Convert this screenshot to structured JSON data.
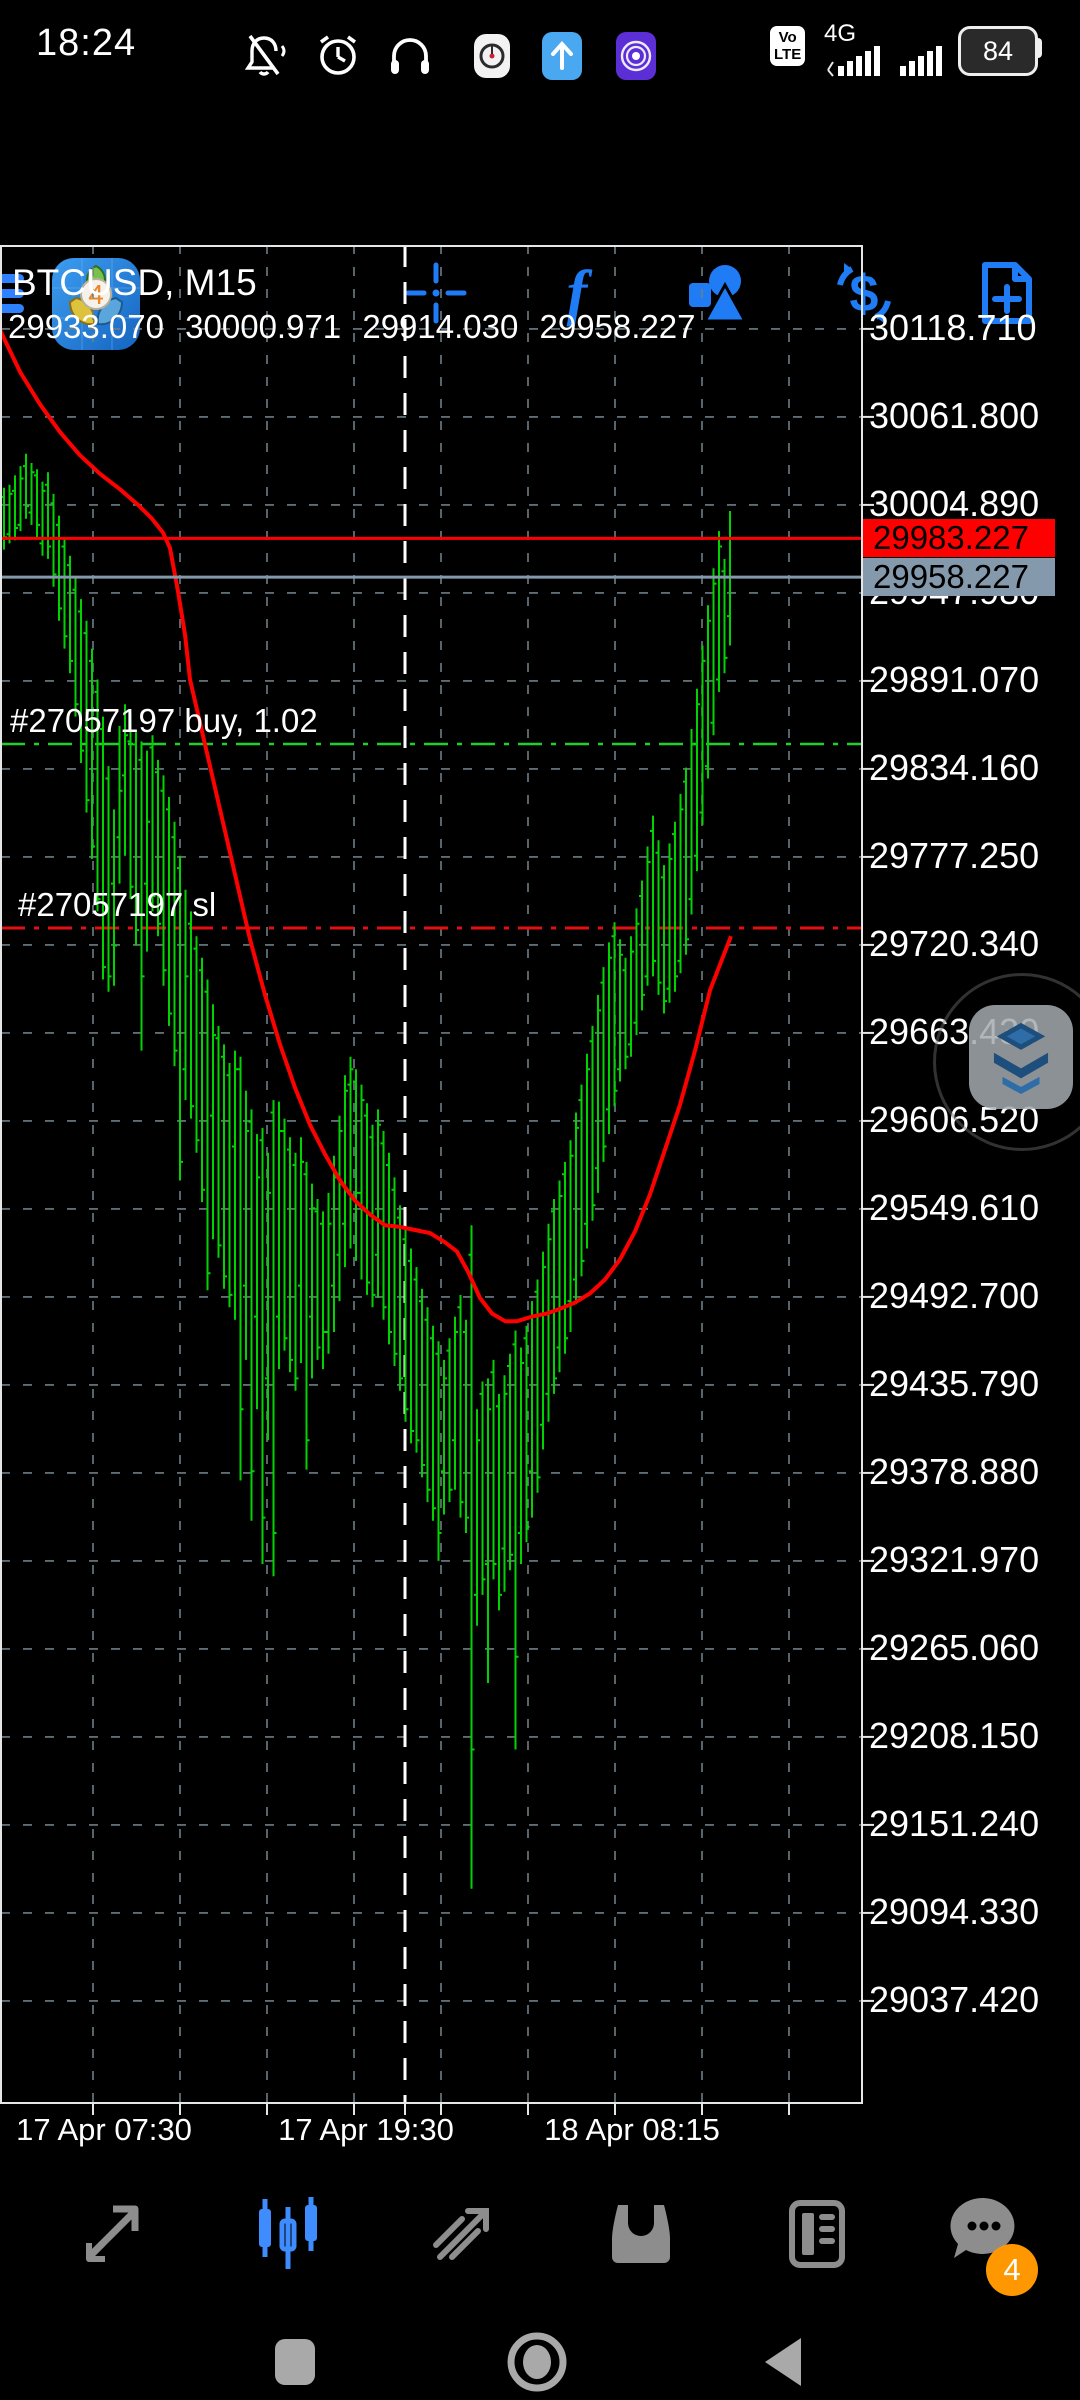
{
  "colors": {
    "accent_blue": "#1f7cf5",
    "bar_green": "#00d300",
    "ma_red": "#ff0000",
    "grid": "#6e7e88",
    "separator_white": "#ffffff",
    "ask_bg": "#ff0000",
    "bid_bg": "#8499ab",
    "buy_line": "#1fcf2f",
    "sl_line": "#e01010",
    "icon_gray": "#8d8d8d",
    "active_blue": "#3f8cff",
    "badge_orange": "#ff9800",
    "border": "#e6e6e6"
  },
  "status_bar": {
    "time": "18:24",
    "left_icons": [
      "muted-bell-icon",
      "alarm-clock-icon",
      "headphones-icon",
      "recorder-icon",
      "arrow-up-app-icon",
      "vpn-app-icon"
    ],
    "volte_line1": "Vo",
    "volte_line2": "LTE",
    "network_type": "4G",
    "battery_level": "84"
  },
  "toolbar": {
    "app_badge": "4",
    "function_glyph": "f",
    "currency_glyph": "$"
  },
  "chart": {
    "symbol": "BTCUSD, M15",
    "ohlc": {
      "open": "29933.070",
      "high": "30000.971",
      "low": "29914.030",
      "close": "29958.227"
    },
    "ask_label": "29983.227",
    "bid_label": "29958.227",
    "position_buy_label": "#27057197 buy, 1.02",
    "position_sl_label": "#27057197 sl",
    "y_axis_labels": [
      "30118.710",
      "30061.800",
      "30004.890",
      "29947.980",
      "29891.070",
      "29834.160",
      "29777.250",
      "29720.340",
      "29663.430",
      "29606.520",
      "29549.610",
      "29492.700",
      "29435.790",
      "29378.880",
      "29321.970",
      "29265.060",
      "29208.150",
      "29151.240",
      "29094.330",
      "29037.420"
    ],
    "x_axis_labels": [
      {
        "text": "17 Apr 07:30",
        "x": 104
      },
      {
        "text": "17 Apr 19:30",
        "x": 366
      },
      {
        "text": "18 Apr 08:15",
        "x": 632
      }
    ]
  },
  "chart_data": {
    "type": "ohlc-bar",
    "symbol": "BTCUSD",
    "timeframe": "M15",
    "ylim": [
      28971.4,
      30173.0
    ],
    "price_gridlines": [
      30118.71,
      30061.8,
      30004.89,
      29947.98,
      29891.07,
      29834.16,
      29777.25,
      29720.34,
      29663.43,
      29606.52,
      29549.61,
      29492.7,
      29435.79,
      29378.88,
      29321.97,
      29265.06,
      29208.15,
      29151.24,
      29094.33,
      29037.42
    ],
    "time_gridlines_x": [
      93,
      180,
      267,
      354,
      441,
      528,
      615,
      702,
      789
    ],
    "day_separator_x": 405,
    "lines": {
      "ask": 29983.227,
      "bid": 29958.227,
      "buy": 29850.3,
      "sl": 29731.3
    },
    "bars": {
      "x0": 4,
      "pitch": 5.5,
      "ohlc": [
        [
          30010,
          30016,
          29976,
          29984
        ],
        [
          29986,
          30018,
          29980,
          30012
        ],
        [
          30014,
          30024,
          29982,
          29990
        ],
        [
          29992,
          30030,
          29988,
          30022
        ],
        [
          30030,
          30038,
          29996,
          30004
        ],
        [
          30000,
          30032,
          29992,
          30026
        ],
        [
          30024,
          30028,
          29984,
          29992
        ],
        [
          29980,
          30020,
          29972,
          30014
        ],
        [
          30018,
          30026,
          29970,
          29978
        ],
        [
          30006,
          30012,
          29952,
          29960
        ],
        [
          29992,
          29998,
          29930,
          29938
        ],
        [
          29978,
          29984,
          29912,
          29920
        ],
        [
          29966,
          29972,
          29896,
          29904
        ],
        [
          29950,
          29958,
          29868,
          29876
        ],
        [
          29936,
          29944,
          29838,
          29846
        ],
        [
          29922,
          29930,
          29806,
          29814
        ],
        [
          29904,
          29912,
          29776,
          29784
        ],
        [
          29884,
          29892,
          29742,
          29750
        ],
        [
          29860,
          29868,
          29698,
          29706
        ],
        [
          29828,
          29836,
          29690,
          29700
        ],
        [
          29760,
          29808,
          29694,
          29720
        ],
        [
          29790,
          29862,
          29760,
          29820
        ],
        [
          29830,
          29876,
          29778,
          29856
        ],
        [
          29852,
          29870,
          29750,
          29758
        ],
        [
          29850,
          29858,
          29720,
          29730
        ],
        [
          29840,
          29852,
          29652,
          29700
        ],
        [
          29760,
          29846,
          29716,
          29800
        ],
        [
          29848,
          29856,
          29742,
          29752
        ],
        [
          29832,
          29840,
          29726,
          29734
        ],
        [
          29820,
          29830,
          29694,
          29704
        ],
        [
          29808,
          29816,
          29668,
          29676
        ],
        [
          29790,
          29800,
          29642,
          29652
        ],
        [
          29770,
          29778,
          29568,
          29580
        ],
        [
          29640,
          29756,
          29620,
          29700
        ],
        [
          29734,
          29742,
          29608,
          29616
        ],
        [
          29718,
          29726,
          29586,
          29594
        ],
        [
          29704,
          29712,
          29554,
          29562
        ],
        [
          29690,
          29698,
          29497,
          29508
        ],
        [
          29610,
          29682,
          29530,
          29662
        ],
        [
          29660,
          29668,
          29518,
          29526
        ],
        [
          29648,
          29656,
          29498,
          29506
        ],
        [
          29636,
          29644,
          29486,
          29494
        ],
        [
          29590,
          29652,
          29478,
          29640
        ],
        [
          29640,
          29648,
          29374,
          29420
        ],
        [
          29500,
          29626,
          29452,
          29600
        ],
        [
          29606,
          29614,
          29348,
          29380
        ],
        [
          29480,
          29598,
          29420,
          29570
        ],
        [
          29594,
          29602,
          29320,
          29350
        ],
        [
          29440,
          29586,
          29400,
          29560
        ],
        [
          29612,
          29620,
          29312,
          29340
        ],
        [
          29480,
          29619,
          29446,
          29600
        ],
        [
          29600,
          29608,
          29458,
          29466
        ],
        [
          29588,
          29596,
          29444,
          29452
        ],
        [
          29578,
          29586,
          29432,
          29440
        ],
        [
          29500,
          29596,
          29450,
          29580
        ],
        [
          29572,
          29580,
          29381,
          29400
        ],
        [
          29480,
          29566,
          29440,
          29550
        ],
        [
          29548,
          29556,
          29452,
          29460
        ],
        [
          29540,
          29548,
          29446,
          29470
        ],
        [
          29470,
          29560,
          29456,
          29540
        ],
        [
          29500,
          29584,
          29470,
          29570
        ],
        [
          29520,
          29610,
          29490,
          29600
        ],
        [
          29540,
          29636,
          29512,
          29626
        ],
        [
          29630,
          29648,
          29524,
          29640
        ],
        [
          29632,
          29640,
          29516,
          29560
        ],
        [
          29560,
          29630,
          29504,
          29620
        ],
        [
          29610,
          29618,
          29494,
          29502
        ],
        [
          29596,
          29604,
          29486,
          29494
        ],
        [
          29520,
          29614,
          29492,
          29604
        ],
        [
          29592,
          29600,
          29478,
          29486
        ],
        [
          29578,
          29586,
          29462,
          29470
        ],
        [
          29562,
          29570,
          29448,
          29456
        ],
        [
          29544,
          29552,
          29432,
          29440
        ],
        [
          29530,
          29538,
          29412,
          29420
        ],
        [
          29516,
          29524,
          29398,
          29406
        ],
        [
          29504,
          29512,
          29392,
          29400
        ],
        [
          29490,
          29498,
          29376,
          29384
        ],
        [
          29478,
          29486,
          29360,
          29368
        ],
        [
          29466,
          29474,
          29348,
          29356
        ],
        [
          29456,
          29464,
          29322,
          29340
        ],
        [
          29380,
          29452,
          29352,
          29440
        ],
        [
          29458,
          29466,
          29360,
          29368
        ],
        [
          29400,
          29480,
          29368,
          29470
        ],
        [
          29486,
          29494,
          29350,
          29360
        ],
        [
          29470,
          29478,
          29340,
          29350
        ],
        [
          29520,
          29539,
          29110,
          29200
        ],
        [
          29300,
          29420,
          29280,
          29400
        ],
        [
          29430,
          29438,
          29300,
          29310
        ],
        [
          29320,
          29440,
          29243,
          29420
        ],
        [
          29444,
          29452,
          29310,
          29320
        ],
        [
          29422,
          29430,
          29290,
          29300
        ],
        [
          29330,
          29442,
          29302,
          29430
        ],
        [
          29448,
          29456,
          29316,
          29326
        ],
        [
          29462,
          29471,
          29200,
          29260
        ],
        [
          29340,
          29460,
          29320,
          29450
        ],
        [
          29466,
          29474,
          29334,
          29344
        ],
        [
          29380,
          29490,
          29350,
          29480
        ],
        [
          29496,
          29504,
          29366,
          29376
        ],
        [
          29410,
          29522,
          29394,
          29512
        ],
        [
          29430,
          29540,
          29412,
          29530
        ],
        [
          29548,
          29556,
          29430,
          29440
        ],
        [
          29460,
          29568,
          29444,
          29558
        ],
        [
          29572,
          29580,
          29456,
          29466
        ],
        [
          29490,
          29594,
          29470,
          29584
        ],
        [
          29504,
          29612,
          29488,
          29602
        ],
        [
          29620,
          29630,
          29506,
          29516
        ],
        [
          29540,
          29650,
          29524,
          29640
        ],
        [
          29658,
          29668,
          29542,
          29552
        ],
        [
          29576,
          29688,
          29560,
          29678
        ],
        [
          29696,
          29706,
          29580,
          29590
        ],
        [
          29614,
          29722,
          29598,
          29712
        ],
        [
          29726,
          29735,
          29616,
          29626
        ],
        [
          29640,
          29724,
          29632,
          29714
        ],
        [
          29704,
          29712,
          29640,
          29648
        ],
        [
          29656,
          29726,
          29648,
          29716
        ],
        [
          29670,
          29744,
          29662,
          29734
        ],
        [
          29752,
          29762,
          29678,
          29688
        ],
        [
          29700,
          29784,
          29694,
          29774
        ],
        [
          29794,
          29804,
          29700,
          29710
        ],
        [
          29780,
          29788,
          29688,
          29696
        ],
        [
          29764,
          29772,
          29676,
          29684
        ],
        [
          29692,
          29786,
          29683,
          29776
        ],
        [
          29792,
          29800,
          29690,
          29700
        ],
        [
          29710,
          29818,
          29702,
          29808
        ],
        [
          29826,
          29835,
          29714,
          29724
        ],
        [
          29750,
          29860,
          29740,
          29850
        ],
        [
          29778,
          29886,
          29768,
          29876
        ],
        [
          29806,
          29914,
          29798,
          29904
        ],
        [
          29836,
          29940,
          29828,
          29930
        ],
        [
          29864,
          29964,
          29856,
          29954
        ],
        [
          29892,
          29988,
          29884,
          29978
        ],
        [
          29962,
          29970,
          29896,
          29906
        ],
        [
          29933,
          30001,
          29914,
          29958
        ]
      ]
    },
    "ma": {
      "color": "#ff0000",
      "points": [
        [
          0,
          30118
        ],
        [
          20,
          30091
        ],
        [
          40,
          30070
        ],
        [
          60,
          30052
        ],
        [
          80,
          30037
        ],
        [
          100,
          30025
        ],
        [
          120,
          30015
        ],
        [
          138,
          30005
        ],
        [
          152,
          29996
        ],
        [
          163,
          29987
        ],
        [
          170,
          29977
        ],
        [
          178,
          29949
        ],
        [
          185,
          29921
        ],
        [
          190,
          29892
        ],
        [
          205,
          29850
        ],
        [
          220,
          29808
        ],
        [
          235,
          29766
        ],
        [
          250,
          29724
        ],
        [
          265,
          29688
        ],
        [
          280,
          29656
        ],
        [
          295,
          29628
        ],
        [
          310,
          29604
        ],
        [
          325,
          29585
        ],
        [
          340,
          29568
        ],
        [
          355,
          29555
        ],
        [
          370,
          29546
        ],
        [
          385,
          29539
        ],
        [
          400,
          29538
        ],
        [
          415,
          29536
        ],
        [
          430,
          29534
        ],
        [
          445,
          29528
        ],
        [
          457,
          29522
        ],
        [
          468,
          29509
        ],
        [
          480,
          29492
        ],
        [
          492,
          29482
        ],
        [
          505,
          29477
        ],
        [
          517,
          29477
        ],
        [
          532,
          29480
        ],
        [
          547,
          29482
        ],
        [
          560,
          29485
        ],
        [
          575,
          29489
        ],
        [
          590,
          29495
        ],
        [
          605,
          29504
        ],
        [
          620,
          29517
        ],
        [
          635,
          29535
        ],
        [
          650,
          29559
        ],
        [
          665,
          29588
        ],
        [
          680,
          29617
        ],
        [
          695,
          29652
        ],
        [
          710,
          29691
        ],
        [
          722,
          29711
        ],
        [
          731,
          29726
        ]
      ]
    }
  },
  "bottom_nav": {
    "items": [
      {
        "name": "quotes"
      },
      {
        "name": "charts",
        "active": true
      },
      {
        "name": "trade"
      },
      {
        "name": "mailbox"
      },
      {
        "name": "news"
      },
      {
        "name": "messages",
        "badge": "4"
      }
    ],
    "chat_badge": "4"
  }
}
